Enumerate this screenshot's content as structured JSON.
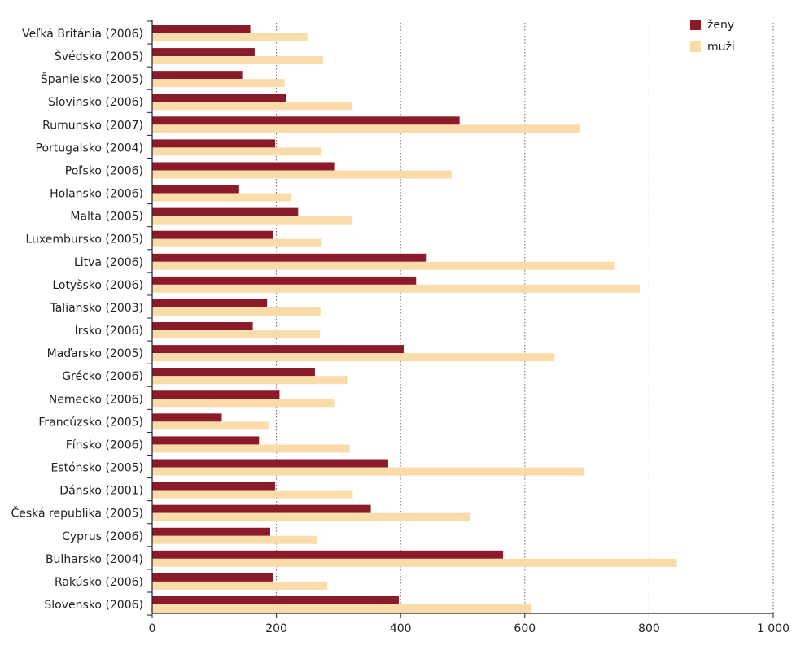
{
  "chart_data": {
    "type": "bar",
    "orientation": "horizontal",
    "categories": [
      "Veľká Británia (2006)",
      "Švédsko (2005)",
      "Španielsko (2005)",
      "Slovinsko (2006)",
      "Rumunsko (2007)",
      "Portugalsko (2004)",
      "Poľsko (2006)",
      "Holansko (2006)",
      "Malta (2005)",
      "Luxembursko (2005)",
      "Litva (2006)",
      "Lotyšsko (2006)",
      "Taliansko (2003)",
      "Írsko (2006)",
      "Maďarsko (2005)",
      "Grécko (2006)",
      "Nemecko (2006)",
      "Francúzsko (2005)",
      "Fínsko (2006)",
      "Estónsko (2005)",
      "Dánsko (2001)",
      "Česká republika (2005)",
      "Cyprus (2006)",
      "Bulharsko (2004)",
      "Rakúsko (2006)",
      "Slovensko (2006)"
    ],
    "series": [
      {
        "name": "ženy",
        "color": "#8b1a2b",
        "values": [
          158,
          165,
          145,
          215,
          495,
          198,
          293,
          140,
          235,
          195,
          442,
          425,
          185,
          162,
          405,
          262,
          205,
          112,
          172,
          380,
          198,
          352,
          190,
          565,
          195,
          397
        ]
      },
      {
        "name": "muži",
        "color": "#f9dcaa",
        "values": [
          250,
          275,
          213,
          322,
          688,
          273,
          482,
          224,
          322,
          273,
          745,
          785,
          271,
          270,
          648,
          314,
          293,
          187,
          318,
          695,
          323,
          512,
          265,
          845,
          282,
          611
        ]
      }
    ],
    "xlim": [
      0,
      1000
    ],
    "xticks": [
      0,
      200,
      400,
      600,
      800,
      1000
    ],
    "xtick_labels": [
      "0",
      "200",
      "400",
      "600",
      "800",
      "1 000"
    ],
    "grid": "vertical dotted",
    "legend_position": "top-right"
  }
}
